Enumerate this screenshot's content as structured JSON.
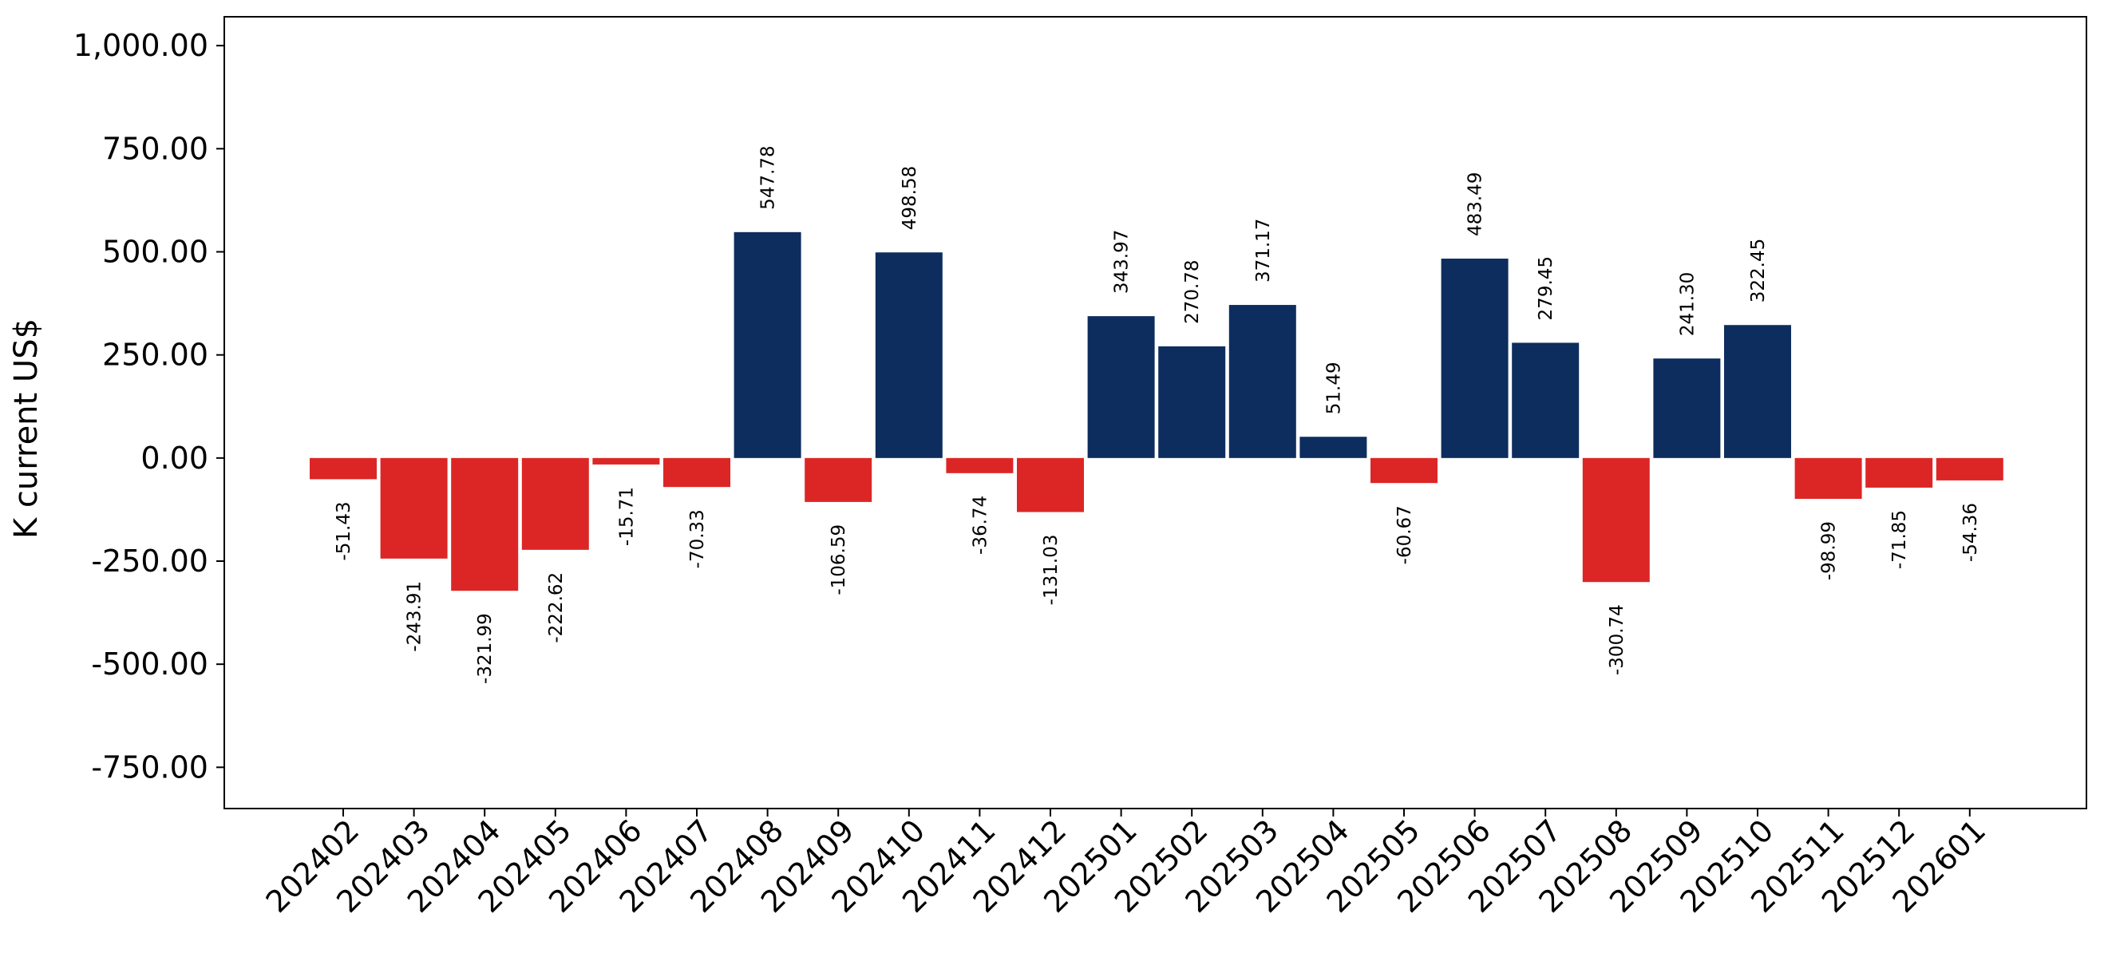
{
  "chart_data": {
    "type": "bar",
    "title": "",
    "xlabel": "",
    "ylabel": "K current US$",
    "ylim": [
      -850,
      1070
    ],
    "yticks": [
      -750,
      -500,
      -250,
      0,
      250,
      500,
      750,
      1000
    ],
    "ytick_labels": [
      "-750.00",
      "-500.00",
      "-250.00",
      "0.00",
      "250.00",
      "500.00",
      "750.00",
      "1,000.00"
    ],
    "grid": false,
    "legend": "none",
    "colors": {
      "positive": "#0d2d5e",
      "negative": "#dc2626"
    },
    "categories": [
      "202402",
      "202403",
      "202404",
      "202405",
      "202406",
      "202407",
      "202408",
      "202409",
      "202410",
      "202411",
      "202412",
      "202501",
      "202502",
      "202503",
      "202504",
      "202505",
      "202506",
      "202507",
      "202508",
      "202509",
      "202510",
      "202511",
      "202512",
      "202601"
    ],
    "values": [
      -51.43,
      -243.91,
      -321.99,
      -222.62,
      -15.71,
      -70.33,
      547.78,
      -106.59,
      498.58,
      -36.74,
      -131.03,
      343.97,
      270.78,
      371.17,
      51.49,
      -60.67,
      483.49,
      279.45,
      -300.74,
      241.3,
      322.45,
      -98.99,
      -71.85,
      -54.36
    ],
    "value_labels": [
      "-51.43",
      "-243.91",
      "-321.99",
      "-222.62",
      "-15.71",
      "-70.33",
      "547.78",
      "-106.59",
      "498.58",
      "-36.74",
      "-131.03",
      "343.97",
      "270.78",
      "371.17",
      "51.49",
      "-60.67",
      "483.49",
      "279.45",
      "-300.74",
      "241.30",
      "322.45",
      "-98.99",
      "-71.85",
      "-54.36"
    ]
  }
}
